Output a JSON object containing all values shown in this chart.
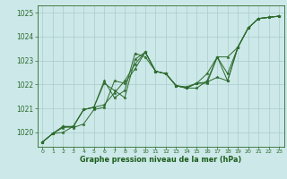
{
  "bg_color": "#cce8e8",
  "grid_color": "#aacccc",
  "line_color": "#2d6b2d",
  "marker_color": "#2d6b2d",
  "xlabel": "Graphe pression niveau de la mer (hPa)",
  "xlabel_color": "#1a5c1a",
  "ylim": [
    1019.4,
    1025.3
  ],
  "xlim": [
    -0.5,
    23.5
  ],
  "yticks": [
    1020,
    1021,
    1022,
    1023,
    1024,
    1025
  ],
  "xticks": [
    0,
    1,
    2,
    3,
    4,
    5,
    6,
    7,
    8,
    9,
    10,
    11,
    12,
    13,
    14,
    15,
    16,
    17,
    18,
    19,
    20,
    21,
    22,
    23
  ],
  "series": [
    [
      1019.6,
      1019.95,
      1020.0,
      1020.25,
      1020.95,
      1021.05,
      1022.15,
      1021.45,
      1021.75,
      1023.3,
      1023.15,
      1022.55,
      1022.45,
      1021.95,
      1021.85,
      1021.85,
      1022.15,
      1023.15,
      1022.15,
      1023.55,
      1024.35,
      1024.75,
      1024.8,
      1024.85
    ],
    [
      1019.6,
      1019.95,
      1020.25,
      1020.25,
      1020.95,
      1021.05,
      1022.05,
      1021.75,
      1021.45,
      1023.05,
      1023.35,
      1022.55,
      1022.45,
      1021.95,
      1021.85,
      1022.05,
      1022.05,
      1023.15,
      1022.45,
      1023.55,
      1024.35,
      1024.75,
      1024.8,
      1024.85
    ],
    [
      1019.6,
      1019.95,
      1020.25,
      1020.2,
      1020.35,
      1020.95,
      1021.05,
      1022.15,
      1022.05,
      1022.65,
      1023.35,
      1022.55,
      1022.45,
      1021.95,
      1021.9,
      1022.05,
      1022.45,
      1023.15,
      1023.15,
      1023.55,
      1024.35,
      1024.75,
      1024.8,
      1024.85
    ],
    [
      1019.6,
      1019.95,
      1020.2,
      1020.25,
      1020.95,
      1021.05,
      1021.15,
      1021.65,
      1022.15,
      1022.85,
      1023.35,
      1022.55,
      1022.45,
      1021.95,
      1021.85,
      1022.05,
      1022.1,
      1022.3,
      1022.15,
      1023.55,
      1024.35,
      1024.75,
      1024.8,
      1024.85
    ]
  ]
}
